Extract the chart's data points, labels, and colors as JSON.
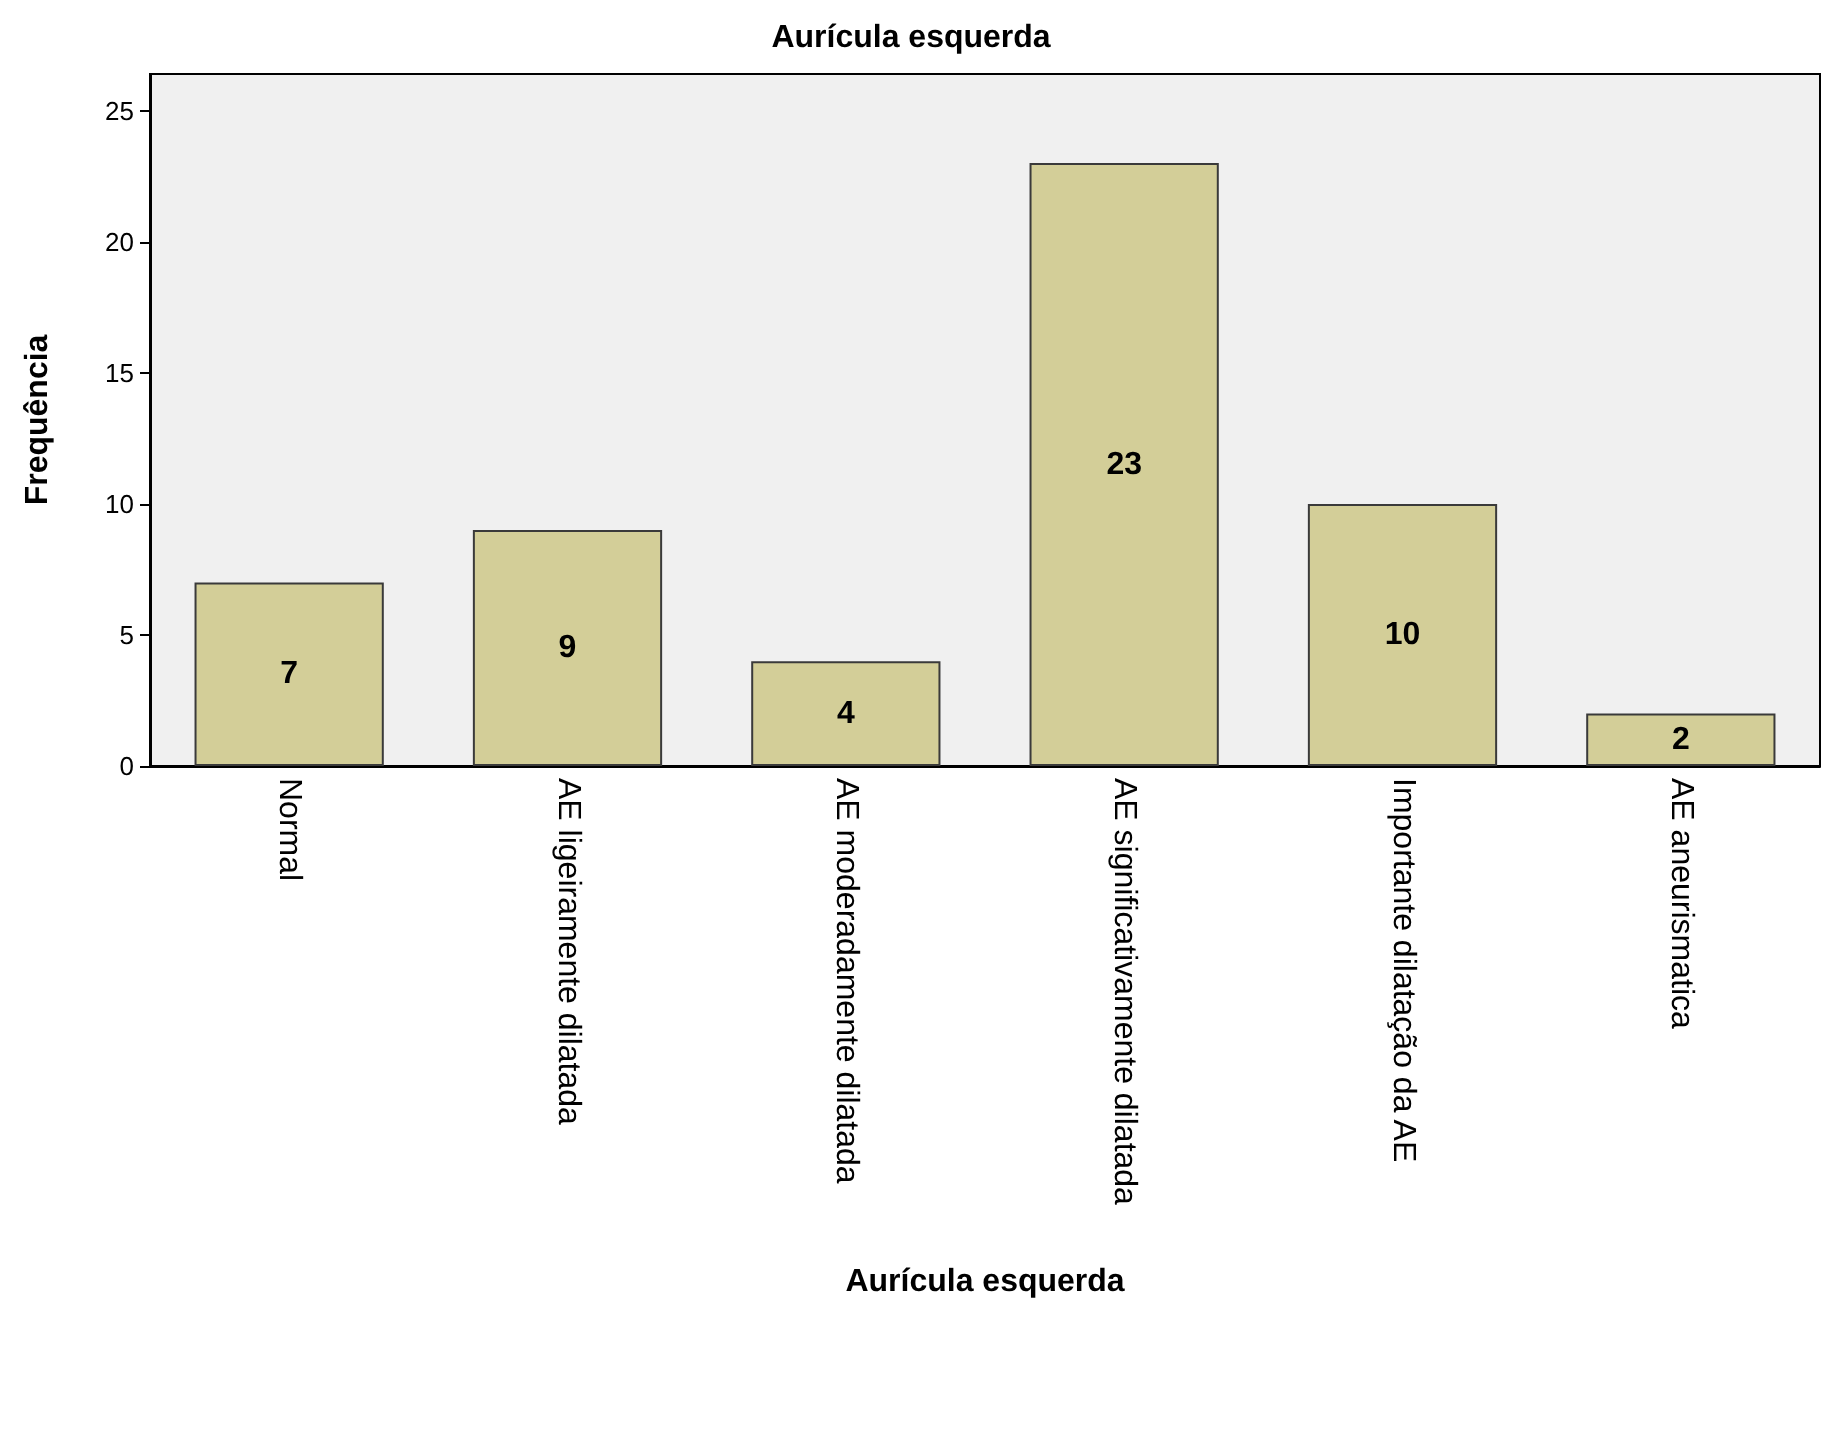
{
  "chart_data": {
    "type": "bar",
    "title": "Aurícula esquerda",
    "xlabel": "Aurícula esquerda",
    "ylabel": "Frequência",
    "categories": [
      "Normal",
      "AE ligeiramente dilatada",
      "AE moderadamente dilatada",
      "AE significativamente dilatada",
      "Importante dilatação da AE",
      "AE aneurismatica"
    ],
    "values": [
      7,
      9,
      4,
      23,
      10,
      2
    ],
    "color": "#d3ce98",
    "ylim": [
      0,
      26.4
    ],
    "yticks": [
      0,
      5,
      10,
      15,
      20,
      25
    ],
    "grid": false,
    "data_labels": true
  }
}
